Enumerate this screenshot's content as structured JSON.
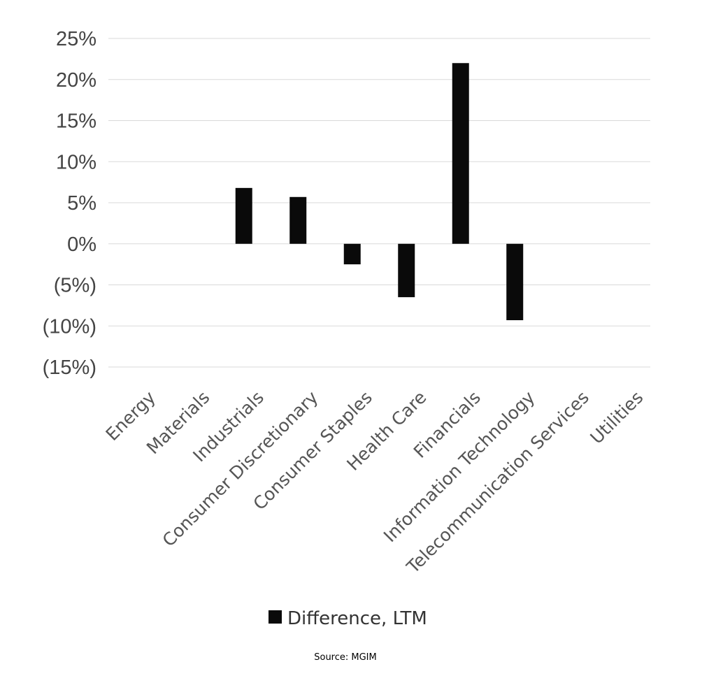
{
  "chart_data": {
    "type": "bar",
    "categories": [
      "Energy",
      "Materials",
      "Industrials",
      "Consumer Discretionary",
      "Consumer Staples",
      "Health Care",
      "Financials",
      "Information Technology",
      "Telecommunication Services",
      "Utilities"
    ],
    "series": [
      {
        "name": "Difference, LTM",
        "color": "#0a0a0a",
        "values": [
          0,
          0,
          6.8,
          5.7,
          -2.5,
          -6.5,
          22.0,
          -9.3,
          0,
          0
        ]
      }
    ],
    "yticks": [
      25,
      20,
      15,
      10,
      5,
      0,
      -5,
      -10,
      -15
    ],
    "ytick_labels": [
      "25%",
      "20%",
      "15%",
      "10%",
      "5%",
      "0%",
      "(5%)",
      "(10%)",
      "(15%)"
    ],
    "ylim": [
      -15,
      25
    ],
    "grid": true,
    "legend_position": "bottom",
    "source": "Source: MGIM"
  }
}
